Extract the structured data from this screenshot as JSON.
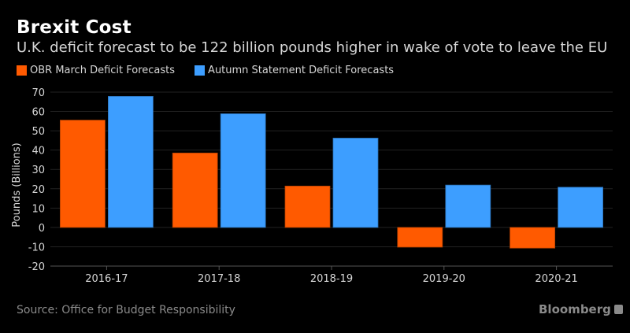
{
  "header": {
    "title": "Brexit Cost",
    "subtitle": "U.K. deficit forecast to be 122 billion pounds higher in wake of vote to leave the EU"
  },
  "footer": {
    "source": "Source: Office for Budget Responsibility",
    "brand": "Bloomberg",
    "brand_icon": "bloomberg-chart-icon"
  },
  "colors": {
    "background": "#000000",
    "obr": "#ff5a00",
    "autumn": "#3d9eff",
    "grid": "#222222",
    "text": "#d6d6d6"
  },
  "chart_data": {
    "type": "bar",
    "title": "Brexit Cost",
    "subtitle": "U.K. deficit forecast to be 122 billion pounds higher in wake of vote to leave the EU",
    "xlabel": "",
    "ylabel": "Pounds (Billions)",
    "ylim": [
      -20,
      70
    ],
    "yticks": [
      70,
      60,
      50,
      40,
      30,
      20,
      10,
      0,
      -10,
      -20
    ],
    "grid": true,
    "legend_position": "top-left",
    "categories": [
      "2016-17",
      "2017-18",
      "2018-19",
      "2019-20",
      "2020-21"
    ],
    "series": [
      {
        "name": "OBR March Deficit Forecasts",
        "color": "#ff5a00",
        "values": [
          55.5,
          38.5,
          21.4,
          -10.2,
          -10.7
        ]
      },
      {
        "name": "Autumn Statement Deficit Forecasts",
        "color": "#3d9eff",
        "values": [
          67.8,
          58.8,
          46.2,
          21.9,
          20.8
        ]
      }
    ]
  }
}
